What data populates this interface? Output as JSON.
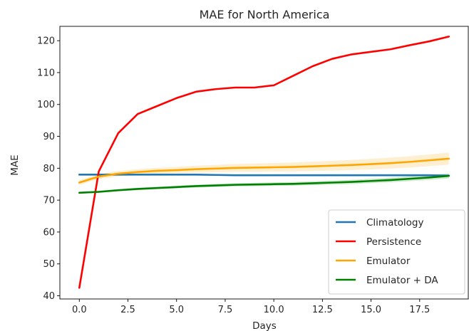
{
  "chart_data": {
    "type": "line",
    "title": "MAE for North America",
    "xlabel": "Days",
    "ylabel": "MAE",
    "xlim": [
      -1.0,
      20.0
    ],
    "ylim": [
      39.0,
      124.5
    ],
    "xticks": [
      0.0,
      2.5,
      5.0,
      7.5,
      10.0,
      12.5,
      15.0,
      17.5
    ],
    "xtick_labels": [
      "0.0",
      "2.5",
      "5.0",
      "7.5",
      "10.0",
      "12.5",
      "15.0",
      "17.5"
    ],
    "yticks": [
      40,
      50,
      60,
      70,
      80,
      90,
      100,
      110,
      120
    ],
    "ytick_labels": [
      "40",
      "50",
      "60",
      "70",
      "80",
      "90",
      "100",
      "110",
      "120"
    ],
    "grid": false,
    "legend_position": "lower-right",
    "x": [
      0,
      1,
      2,
      3,
      4,
      5,
      6,
      7,
      8,
      9,
      10,
      11,
      12,
      13,
      14,
      15,
      16,
      17,
      18,
      19
    ],
    "series": [
      {
        "name": "Climatology",
        "color": "#1f77b4",
        "values": [
          78.0,
          78.0,
          78.0,
          78.0,
          78.0,
          78.0,
          78.0,
          77.9,
          77.8,
          77.8,
          77.8,
          77.8,
          77.8,
          77.8,
          77.8,
          77.8,
          77.8,
          77.8,
          77.8,
          77.7
        ]
      },
      {
        "name": "Persistence",
        "color": "#ff0000",
        "values": [
          42.5,
          79.0,
          91.0,
          97.0,
          99.5,
          102.0,
          104.0,
          104.8,
          105.3,
          105.3,
          106.0,
          109.0,
          112.0,
          114.3,
          115.7,
          116.5,
          117.3,
          118.6,
          119.8,
          121.3
        ]
      },
      {
        "name": "Emulator",
        "color": "#ffa500",
        "band": 1.2,
        "values": [
          75.5,
          77.4,
          78.3,
          78.8,
          79.2,
          79.4,
          79.7,
          79.9,
          80.1,
          80.2,
          80.3,
          80.4,
          80.6,
          80.8,
          81.0,
          81.3,
          81.6,
          82.0,
          82.5,
          83.0
        ]
      },
      {
        "name": "Emulator + DA",
        "color": "#008000",
        "band": 0.5,
        "values": [
          72.3,
          72.6,
          73.1,
          73.5,
          73.8,
          74.1,
          74.4,
          74.6,
          74.8,
          74.9,
          75.0,
          75.1,
          75.3,
          75.5,
          75.7,
          76.0,
          76.3,
          76.7,
          77.1,
          77.6
        ]
      }
    ]
  }
}
